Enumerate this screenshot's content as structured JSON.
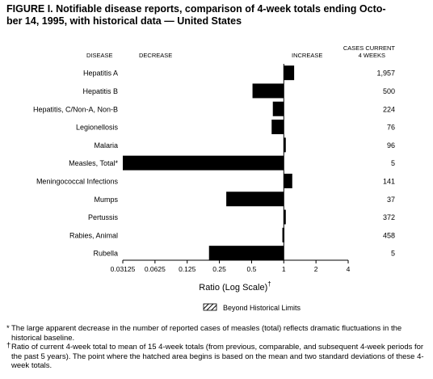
{
  "title_line1": "FIGURE I. Notifiable disease reports, comparison of 4-week totals ending Octo-",
  "title_line2": "ber 14, 1995, with historical data — United States",
  "headers": {
    "disease": "DISEASE",
    "decrease": "DECREASE",
    "increase": "INCREASE",
    "cases_line1": "CASES CURRENT",
    "cases_line2": "4 WEEKS"
  },
  "chart_data": {
    "type": "bar",
    "orientation": "horizontal",
    "x_scale": "log2",
    "xlim": [
      0.03125,
      4
    ],
    "xlabel": "Ratio (Log Scale)",
    "xlabel_mark": "†",
    "xticks": [
      0.03125,
      0.0625,
      0.125,
      0.25,
      0.5,
      1,
      2,
      4
    ],
    "xtick_labels": [
      "0.03125",
      "0.0625",
      "0.125",
      "0.25",
      "0.5",
      "1",
      "2",
      "4"
    ],
    "baseline": 1,
    "categories": [
      "Hepatitis A",
      "Hepatitis B",
      "Hepatitis, C/Non-A, Non-B",
      "Legionellosis",
      "Malaria",
      "Measles, Total*",
      "Meningococcal Infections",
      "Mumps",
      "Pertussis",
      "Rabies, Animal",
      "Rubella"
    ],
    "values": [
      1.25,
      0.51,
      0.79,
      0.77,
      1.04,
      0.03125,
      1.2,
      0.29,
      1.03,
      0.97,
      0.2
    ],
    "cases": [
      "1,957",
      "500",
      "224",
      "76",
      "96",
      "5",
      "141",
      "37",
      "372",
      "458",
      "5"
    ],
    "bar_color": "#000000",
    "legend": {
      "label": "Beyond Historical Limits",
      "placement": "bottom-center"
    }
  },
  "footnotes": [
    {
      "mark": "*",
      "text": "The large apparent decrease in the number of reported cases of measles (total) reflects dramatic fluctuations in the historical baseline."
    },
    {
      "mark": "†",
      "text": "Ratio of current 4-week total to mean of 15 4-week totals (from previous, comparable, and subsequent 4-week periods for the past 5 years). The point where the hatched area begins is based on the mean and two standard deviations of these 4-week totals."
    }
  ]
}
